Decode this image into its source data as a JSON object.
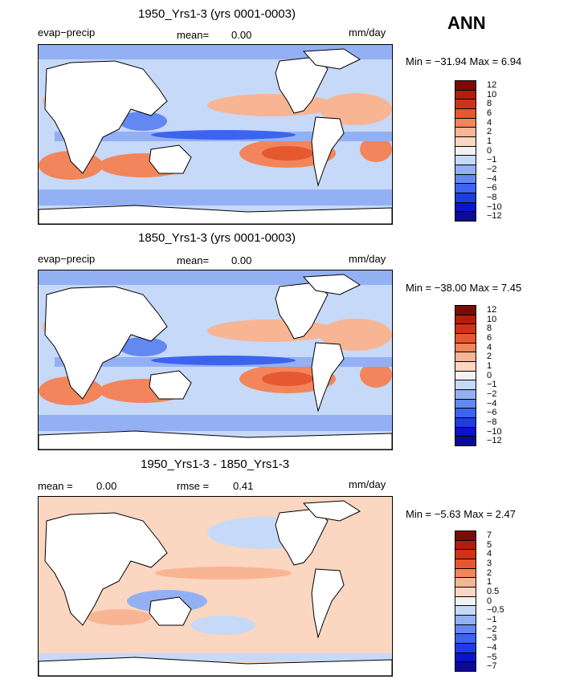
{
  "season": "ANN",
  "units": "mm/day",
  "colors": {
    "neg6": "#0a0a96",
    "neg5": "#0b14c8",
    "neg4": "#1e3ce6",
    "neg3": "#3c64ee",
    "neg2": "#6488f2",
    "neg1": "#93b0f5",
    "neg0": "#c6d9f8",
    "neutral": "#f2f2f2",
    "pos0": "#fbd6c0",
    "pos1": "#f8b594",
    "pos2": "#f2855c",
    "pos3": "#e6582f",
    "pos4": "#cf3218",
    "pos5": "#b01e0c",
    "pos6": "#7e0a06",
    "land": "#ffffff",
    "coast": "#000000"
  },
  "panels": [
    {
      "title": "1950_Yrs1-3 (yrs 0001-0003)",
      "variable": "evap−precip",
      "stats": [
        {
          "label": "mean=",
          "value": "0.00"
        }
      ],
      "units": "mm/day",
      "minmax": "Min = −31.94 Max =   6.94",
      "colorbar_levels": [
        "12",
        "10",
        "8",
        "6",
        "4",
        "2",
        "1",
        "0",
        "−1",
        "−2",
        "−4",
        "−6",
        "−8",
        "−10",
        "−12"
      ]
    },
    {
      "title": "1850_Yrs1-3 (yrs 0001-0003)",
      "variable": "evap−precip",
      "stats": [
        {
          "label": "mean=",
          "value": "0.00"
        }
      ],
      "units": "mm/day",
      "minmax": "Min = −38.00 Max =   7.45",
      "colorbar_levels": [
        "12",
        "10",
        "8",
        "6",
        "4",
        "2",
        "1",
        "0",
        "−1",
        "−2",
        "−4",
        "−6",
        "−8",
        "−10",
        "−12"
      ]
    },
    {
      "title": "1950_Yrs1-3 - 1850_Yrs1-3",
      "variable": "",
      "stats": [
        {
          "label": "mean =",
          "value": "0.00"
        },
        {
          "label": "rmse =",
          "value": "0.41"
        }
      ],
      "units": "mm/day",
      "minmax": "Min =  −5.63 Max =   2.47",
      "colorbar_levels": [
        "7",
        "5",
        "4",
        "3",
        "2",
        "1",
        "0.5",
        "0",
        "−0.5",
        "−1",
        "−2",
        "−3",
        "−4",
        "−5",
        "−7"
      ]
    }
  ]
}
